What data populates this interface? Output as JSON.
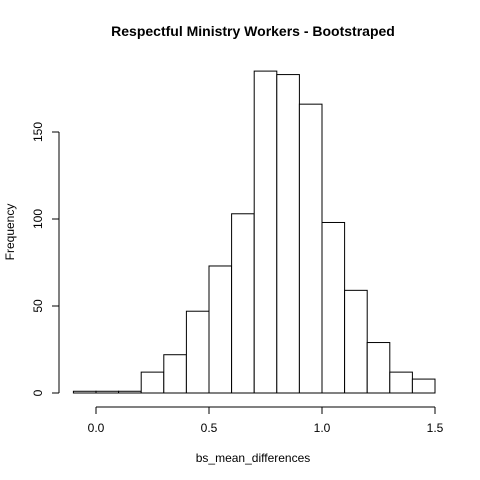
{
  "chart_data": {
    "type": "bar",
    "title": "Respectful Ministry Workers - Bootstraped",
    "xlabel": "bs_mean_differences",
    "ylabel": "Frequency",
    "bins": [
      {
        "x0": -0.1,
        "x1": 0.0,
        "count": 1
      },
      {
        "x0": 0.0,
        "x1": 0.1,
        "count": 1
      },
      {
        "x0": 0.1,
        "x1": 0.2,
        "count": 1
      },
      {
        "x0": 0.2,
        "x1": 0.3,
        "count": 12
      },
      {
        "x0": 0.3,
        "x1": 0.4,
        "count": 22
      },
      {
        "x0": 0.4,
        "x1": 0.5,
        "count": 47
      },
      {
        "x0": 0.5,
        "x1": 0.6,
        "count": 73
      },
      {
        "x0": 0.6,
        "x1": 0.7,
        "count": 103
      },
      {
        "x0": 0.7,
        "x1": 0.8,
        "count": 185
      },
      {
        "x0": 0.8,
        "x1": 0.9,
        "count": 183
      },
      {
        "x0": 0.9,
        "x1": 1.0,
        "count": 166
      },
      {
        "x0": 1.0,
        "x1": 1.1,
        "count": 98
      },
      {
        "x0": 1.1,
        "x1": 1.2,
        "count": 59
      },
      {
        "x0": 1.2,
        "x1": 1.3,
        "count": 29
      },
      {
        "x0": 1.3,
        "x1": 1.4,
        "count": 12
      },
      {
        "x0": 1.4,
        "x1": 1.5,
        "count": 8
      }
    ],
    "x_ticks": [
      "0.0",
      "0.5",
      "1.0",
      "1.5"
    ],
    "y_ticks": [
      "0",
      "50",
      "100",
      "150"
    ],
    "xlim": [
      -0.1,
      1.5
    ],
    "ylim": [
      0,
      185
    ],
    "grid": false,
    "bar_fill": "#ffffff",
    "bar_stroke": "#000000"
  }
}
